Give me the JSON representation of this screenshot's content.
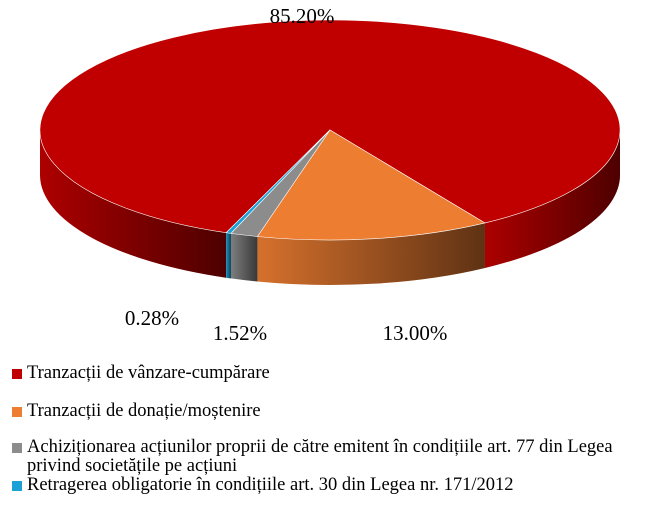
{
  "chart_data": {
    "type": "pie",
    "categories": [
      "Tranzacții de vânzare-cumpărare",
      "Tranzacții de donație/moștenire",
      "Achiziționarea acțiunilor proprii de către emitent în condițiile art. 77 din Legea privind societățile pe acțiuni",
      "Retragerea obligatorie în condițiile art. 30 din Legea nr. 171/2012"
    ],
    "values": [
      85.2,
      13.0,
      1.52,
      0.28
    ],
    "value_labels": [
      "85.20%",
      "13.00%",
      "1.52%",
      "0.28%"
    ],
    "colors": [
      "#c00000",
      "#ed7d31",
      "#8c8c8c",
      "#1ba1d6"
    ],
    "legend": "bottom"
  }
}
